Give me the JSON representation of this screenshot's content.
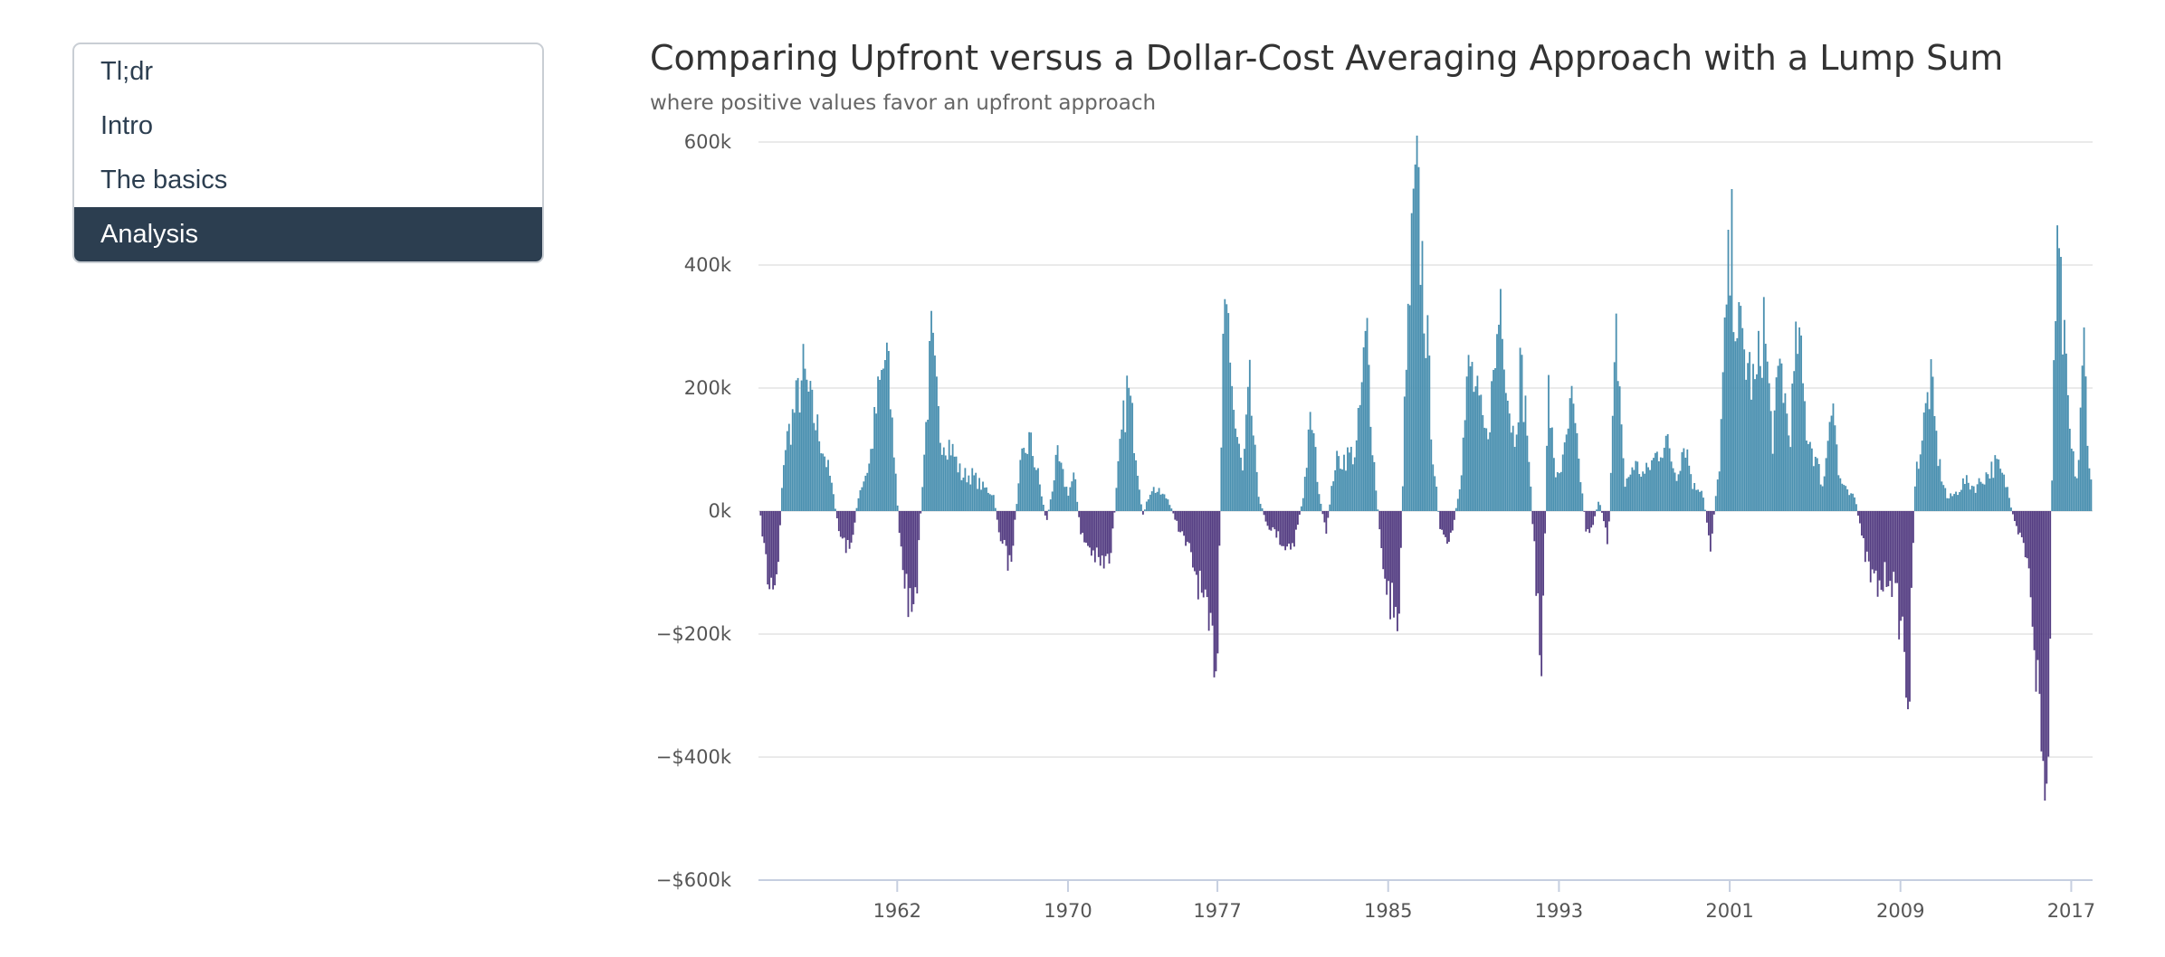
{
  "nav": {
    "items": [
      {
        "label": "Tl;dr",
        "active": false
      },
      {
        "label": "Intro",
        "active": false
      },
      {
        "label": "The basics",
        "active": false
      },
      {
        "label": "Analysis",
        "active": true
      }
    ]
  },
  "chart_data": {
    "type": "bar",
    "title": "Comparing Upfront versus a Dollar-Cost Averaging Approach with a Lump Sum",
    "subtitle": "where positive values favor an upfront approach",
    "x_range": [
      1955.5,
      2018.0
    ],
    "x_ticks": [
      "1962",
      "1970",
      "1977",
      "1985",
      "1993",
      "2001",
      "2009",
      "2017"
    ],
    "ylim": [
      -600000,
      600000
    ],
    "y_ticks": [
      600000,
      400000,
      200000,
      0,
      -200000,
      -400000,
      -600000
    ],
    "y_tick_labels": [
      "600k",
      "400k",
      "200k",
      "0k",
      "−$200k",
      "−$400k",
      "−$600k"
    ],
    "grid": true,
    "colors": {
      "positive": "#4a90b0",
      "negative": "#543d82"
    },
    "anchors": [
      [
        1955.6,
        -10000
      ],
      [
        1956.0,
        -130000
      ],
      [
        1956.4,
        -100000
      ],
      [
        1956.7,
        100000
      ],
      [
        1957.2,
        170000
      ],
      [
        1957.6,
        230000
      ],
      [
        1958.0,
        170000
      ],
      [
        1958.5,
        110000
      ],
      [
        1958.9,
        50000
      ],
      [
        1959.3,
        -40000
      ],
      [
        1959.8,
        -70000
      ],
      [
        1960.2,
        30000
      ],
      [
        1960.7,
        80000
      ],
      [
        1961.1,
        190000
      ],
      [
        1961.5,
        265000
      ],
      [
        1961.9,
        80000
      ],
      [
        1962.1,
        -40000
      ],
      [
        1962.5,
        -150000
      ],
      [
        1962.8,
        -195000
      ],
      [
        1963.2,
        60000
      ],
      [
        1963.6,
        280000
      ],
      [
        1964.0,
        130000
      ],
      [
        1964.5,
        110000
      ],
      [
        1965.0,
        60000
      ],
      [
        1965.5,
        60000
      ],
      [
        1966.0,
        40000
      ],
      [
        1966.5,
        30000
      ],
      [
        1966.8,
        -40000
      ],
      [
        1967.3,
        -95000
      ],
      [
        1967.8,
        80000
      ],
      [
        1968.2,
        120000
      ],
      [
        1968.6,
        60000
      ],
      [
        1969.0,
        -20000
      ],
      [
        1969.5,
        90000
      ],
      [
        1970.0,
        30000
      ],
      [
        1970.3,
        60000
      ],
      [
        1970.6,
        -40000
      ],
      [
        1971.0,
        -60000
      ],
      [
        1971.5,
        -90000
      ],
      [
        1972.0,
        -80000
      ],
      [
        1972.4,
        90000
      ],
      [
        1972.8,
        210000
      ],
      [
        1973.2,
        100000
      ],
      [
        1973.5,
        -10000
      ],
      [
        1973.9,
        40000
      ],
      [
        1974.3,
        30000
      ],
      [
        1974.7,
        20000
      ],
      [
        1975.2,
        -30000
      ],
      [
        1975.7,
        -70000
      ],
      [
        1976.2,
        -130000
      ],
      [
        1976.6,
        -210000
      ],
      [
        1977.0,
        -240000
      ],
      [
        1977.3,
        300000
      ],
      [
        1977.5,
        330000
      ],
      [
        1977.8,
        150000
      ],
      [
        1978.2,
        60000
      ],
      [
        1978.5,
        210000
      ],
      [
        1978.9,
        30000
      ],
      [
        1979.3,
        -20000
      ],
      [
        1979.8,
        -40000
      ],
      [
        1980.2,
        -60000
      ],
      [
        1980.6,
        -50000
      ],
      [
        1981.0,
        20000
      ],
      [
        1981.4,
        160000
      ],
      [
        1981.8,
        20000
      ],
      [
        1982.1,
        -40000
      ],
      [
        1982.5,
        80000
      ],
      [
        1983.0,
        90000
      ],
      [
        1983.5,
        100000
      ],
      [
        1984.0,
        300000
      ],
      [
        1984.3,
        100000
      ],
      [
        1984.7,
        -80000
      ],
      [
        1985.1,
        -150000
      ],
      [
        1985.5,
        -180000
      ],
      [
        1985.8,
        200000
      ],
      [
        1986.1,
        420000
      ],
      [
        1986.3,
        540000
      ],
      [
        1986.5,
        460000
      ],
      [
        1986.8,
        300000
      ],
      [
        1987.1,
        100000
      ],
      [
        1987.4,
        -20000
      ],
      [
        1987.7,
        -60000
      ],
      [
        1988.0,
        -40000
      ],
      [
        1988.4,
        60000
      ],
      [
        1988.8,
        250000
      ],
      [
        1989.2,
        180000
      ],
      [
        1989.6,
        120000
      ],
      [
        1990.0,
        240000
      ],
      [
        1990.3,
        390000
      ],
      [
        1990.6,
        200000
      ],
      [
        1990.9,
        120000
      ],
      [
        1991.2,
        240000
      ],
      [
        1991.5,
        150000
      ],
      [
        1991.8,
        -40000
      ],
      [
        1992.0,
        -150000
      ],
      [
        1992.2,
        -300000
      ],
      [
        1992.5,
        210000
      ],
      [
        1992.8,
        60000
      ],
      [
        1993.2,
        80000
      ],
      [
        1993.6,
        180000
      ],
      [
        1994.0,
        60000
      ],
      [
        1994.3,
        -40000
      ],
      [
        1994.6,
        -20000
      ],
      [
        1994.9,
        20000
      ],
      [
        1995.3,
        -60000
      ],
      [
        1995.7,
        300000
      ],
      [
        1996.1,
        40000
      ],
      [
        1996.5,
        80000
      ],
      [
        1997.0,
        60000
      ],
      [
        1997.5,
        90000
      ],
      [
        1998.0,
        120000
      ],
      [
        1998.5,
        60000
      ],
      [
        1998.9,
        120000
      ],
      [
        1999.3,
        40000
      ],
      [
        1999.7,
        40000
      ],
      [
        2000.1,
        -60000
      ],
      [
        2000.5,
        70000
      ],
      [
        2000.9,
        370000
      ],
      [
        2001.1,
        430000
      ],
      [
        2001.4,
        300000
      ],
      [
        2001.8,
        250000
      ],
      [
        2002.2,
        200000
      ],
      [
        2002.6,
        320000
      ],
      [
        2003.0,
        120000
      ],
      [
        2003.4,
        250000
      ],
      [
        2003.8,
        120000
      ],
      [
        2004.2,
        300000
      ],
      [
        2004.6,
        140000
      ],
      [
        2005.0,
        90000
      ],
      [
        2005.4,
        40000
      ],
      [
        2005.8,
        220000
      ],
      [
        2006.1,
        60000
      ],
      [
        2006.5,
        30000
      ],
      [
        2006.9,
        20000
      ],
      [
        2007.2,
        -50000
      ],
      [
        2007.6,
        -110000
      ],
      [
        2008.0,
        -130000
      ],
      [
        2008.5,
        -100000
      ],
      [
        2008.8,
        -150000
      ],
      [
        2009.1,
        -200000
      ],
      [
        2009.4,
        -320000
      ],
      [
        2009.7,
        60000
      ],
      [
        2010.0,
        120000
      ],
      [
        2010.4,
        220000
      ],
      [
        2010.8,
        80000
      ],
      [
        2011.2,
        20000
      ],
      [
        2011.6,
        30000
      ],
      [
        2012.0,
        50000
      ],
      [
        2012.5,
        40000
      ],
      [
        2013.0,
        60000
      ],
      [
        2013.5,
        80000
      ],
      [
        2014.0,
        40000
      ],
      [
        2014.4,
        -30000
      ],
      [
        2014.8,
        -60000
      ],
      [
        2015.1,
        -130000
      ],
      [
        2015.4,
        -280000
      ],
      [
        2015.7,
        -450000
      ],
      [
        2015.9,
        -490000
      ],
      [
        2016.2,
        310000
      ],
      [
        2016.4,
        410000
      ],
      [
        2016.7,
        250000
      ],
      [
        2017.0,
        100000
      ],
      [
        2017.3,
        50000
      ],
      [
        2017.6,
        280000
      ],
      [
        2017.9,
        40000
      ],
      [
        2018.0,
        60000
      ]
    ]
  }
}
